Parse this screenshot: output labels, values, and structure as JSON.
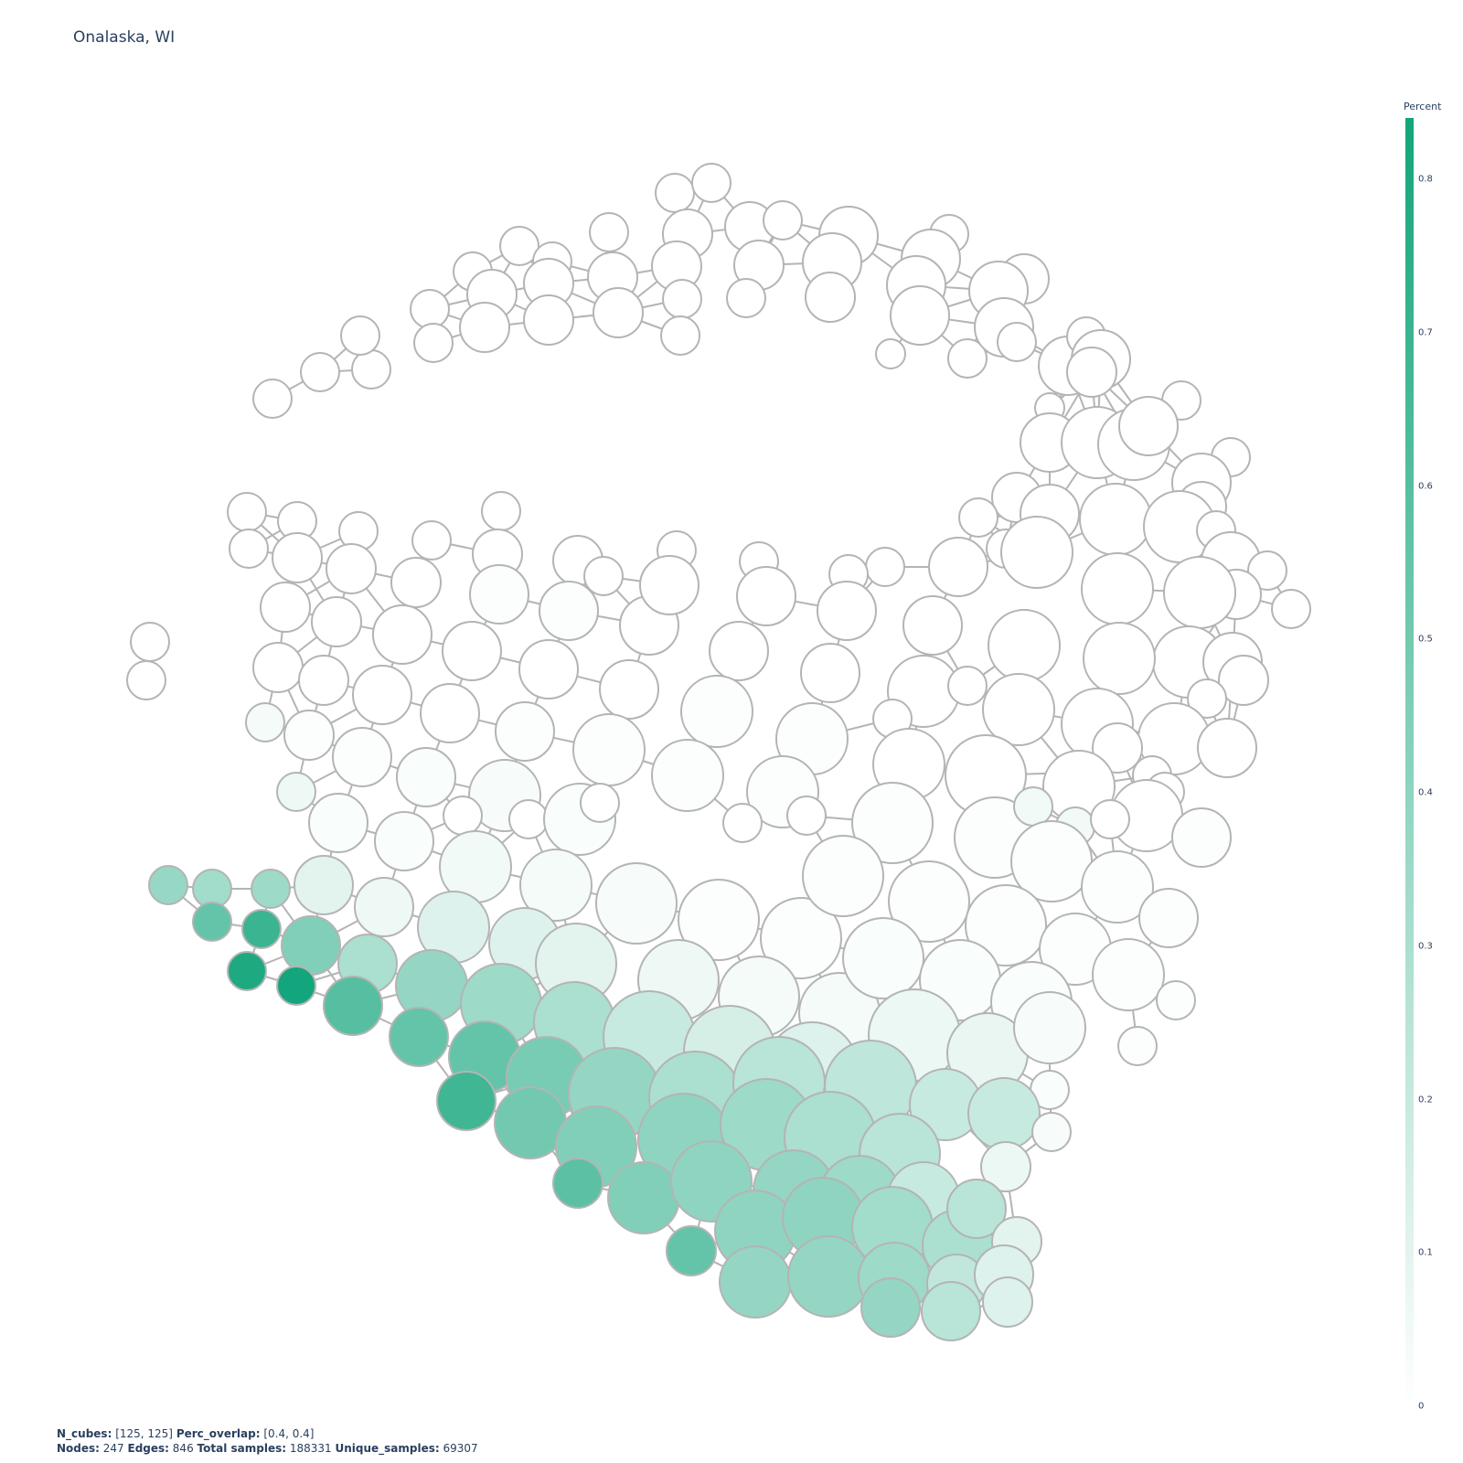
{
  "title": "Onalaska, WI",
  "colorbar": {
    "title": "Percent",
    "ticks": [
      "0",
      "0.1",
      "0.2",
      "0.3",
      "0.4",
      "0.5",
      "0.6",
      "0.7",
      "0.8"
    ],
    "min": 0,
    "max": 0.84,
    "colors": [
      "#ffffff",
      "#13a57b"
    ]
  },
  "footer": {
    "n_cubes_label": "N_cubes:",
    "n_cubes_value": " [125, 125] ",
    "perc_overlap_label": "Perc_overlap:",
    "perc_overlap_value": " [0.4, 0.4]",
    "nodes_label": "Nodes:",
    "nodes_value": " 247 ",
    "edges_label": "Edges:",
    "edges_value": " 846 ",
    "total_samples_label": "Total samples:",
    "total_samples_value": " 188331 ",
    "unique_samples_label": "Unique_samples:",
    "unique_samples_value": " 69307"
  },
  "colors": {
    "node_outline": "#b4b4b4",
    "edge": "#b4b4b4",
    "text": "#2a3f5f"
  }
}
